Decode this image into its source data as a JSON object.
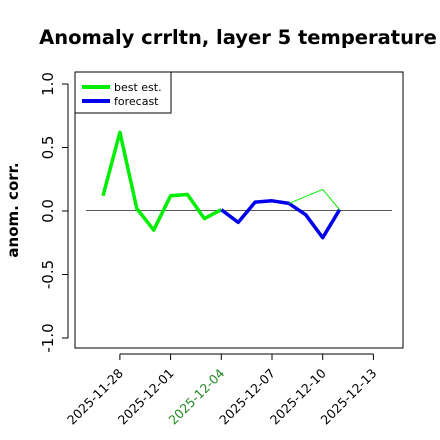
{
  "chart_data": {
    "type": "line",
    "title": "Anomaly crrltn, layer 5 temperature",
    "xlabel": "",
    "ylabel": "anom. corr.",
    "ylim": [
      -1.0,
      1.0
    ],
    "yticks": [
      "-1.0",
      "-0.5",
      "0.0",
      "0.5",
      "1.0"
    ],
    "xlim": [
      "2025-11-26",
      "2025-12-14"
    ],
    "xticks": [
      {
        "date": "2025-11-28",
        "label": "2025-11-28",
        "color": "#000000"
      },
      {
        "date": "2025-12-01",
        "label": "2025-12-01",
        "color": "#000000"
      },
      {
        "date": "2025-12-04",
        "label": "2025-12-04",
        "color": "#228b22"
      },
      {
        "date": "2025-12-07",
        "label": "2025-12-07",
        "color": "#000000"
      },
      {
        "date": "2025-12-10",
        "label": "2025-12-10",
        "color": "#000000"
      },
      {
        "date": "2025-12-13",
        "label": "2025-12-13",
        "color": "#000000"
      }
    ],
    "zero_line": true,
    "grid": false,
    "legend_position": "top-left",
    "series": [
      {
        "name": "best est.",
        "color": "#00ee00",
        "points": [
          {
            "x": "2025-11-27",
            "y": 0.12
          },
          {
            "x": "2025-11-28",
            "y": 0.62
          },
          {
            "x": "2025-11-29",
            "y": 0.02
          },
          {
            "x": "2025-11-30",
            "y": -0.15
          },
          {
            "x": "2025-12-01",
            "y": 0.12
          },
          {
            "x": "2025-12-02",
            "y": 0.13
          },
          {
            "x": "2025-12-03",
            "y": -0.06
          },
          {
            "x": "2025-12-04",
            "y": 0.01
          }
        ]
      },
      {
        "name": "forecast",
        "color": "#0000ee",
        "points": [
          {
            "x": "2025-12-04",
            "y": 0.01
          },
          {
            "x": "2025-12-05",
            "y": -0.09
          },
          {
            "x": "2025-12-06",
            "y": 0.07
          },
          {
            "x": "2025-12-07",
            "y": 0.08
          },
          {
            "x": "2025-12-08",
            "y": 0.06
          },
          {
            "x": "2025-12-09",
            "y": -0.03
          },
          {
            "x": "2025-12-10",
            "y": -0.21
          },
          {
            "x": "2025-12-11",
            "y": 0.01
          }
        ]
      },
      {
        "name": "",
        "color": "#00ee00",
        "points": [
          {
            "x": "2025-12-08",
            "y": 0.06
          },
          {
            "x": "2025-12-10",
            "y": 0.17
          },
          {
            "x": "2025-12-11",
            "y": 0.01
          }
        ]
      }
    ]
  }
}
